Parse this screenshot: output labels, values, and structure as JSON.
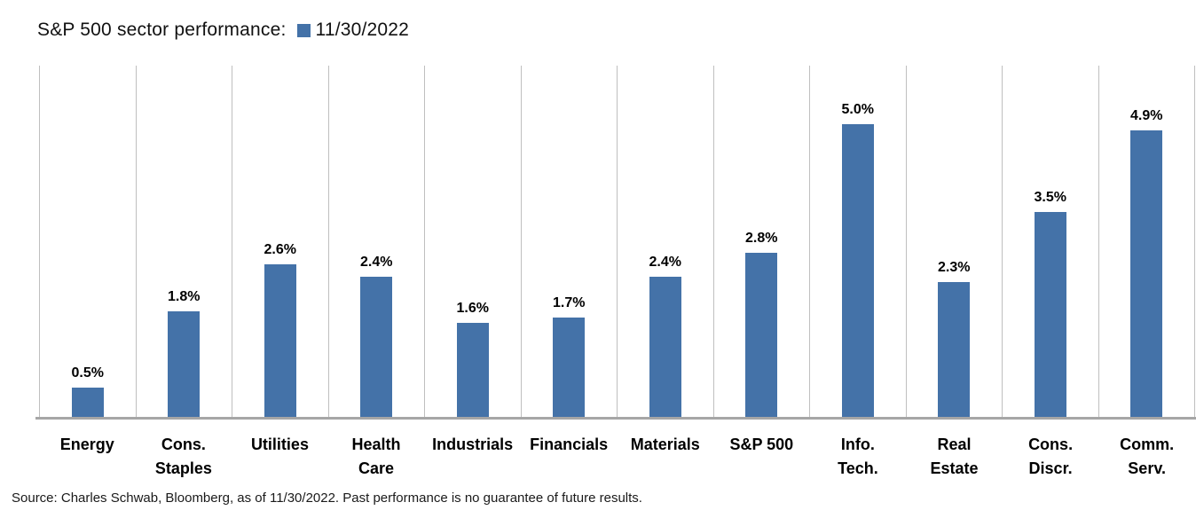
{
  "chart": {
    "title": "S&P 500 sector performance:",
    "legend_label": "11/30/2022",
    "source": "Source: Charles Schwab, Bloomberg, as of 11/30/2022.  Past performance is no guarantee of future results.",
    "colors": {
      "bar": "#4472A8",
      "gridline": "#BFBFBF",
      "axis_line": "#A6A6A6",
      "text": "#000000"
    }
  },
  "chart_data": {
    "type": "bar",
    "title": "S&P 500 sector performance:",
    "series": [
      {
        "name": "11/30/2022",
        "values": [
          0.5,
          1.8,
          2.6,
          2.4,
          1.6,
          1.7,
          2.4,
          2.8,
          5.0,
          2.3,
          3.5,
          4.9
        ]
      }
    ],
    "categories": [
      "Energy",
      "Cons.\nStaples",
      "Utilities",
      "Health\nCare",
      "Industrials",
      "Financials",
      "Materials",
      "S&P 500",
      "Info.\nTech.",
      "Real\nEstate",
      "Cons.\nDiscr.",
      "Comm.\nServ."
    ],
    "value_labels": [
      "0.5%",
      "1.8%",
      "2.6%",
      "2.4%",
      "1.6%",
      "1.7%",
      "2.4%",
      "2.8%",
      "5.0%",
      "2.3%",
      "3.5%",
      "4.9%"
    ],
    "xlabel": "",
    "ylabel": "",
    "ylim": [
      0,
      6
    ],
    "y_axis_visible": false,
    "grid": "vertical category separators only",
    "legend_position": "top inline with title",
    "data_labels": "above bars, bold, percent format",
    "source_note": "Source: Charles Schwab, Bloomberg, as of 11/30/2022.  Past performance is no guarantee of future results."
  }
}
